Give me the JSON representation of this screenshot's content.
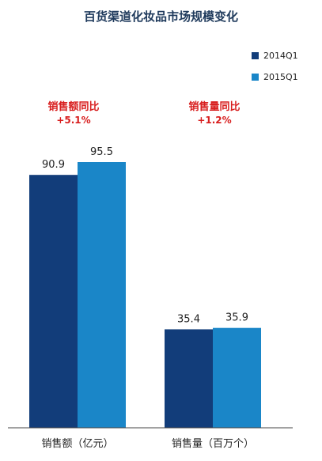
{
  "colors": {
    "series1": "#123d7a",
    "series2": "#1a86c8",
    "axis": "#444444",
    "annotation": "#d81e1e"
  },
  "chart_data": {
    "type": "bar",
    "title": "百货渠道化妆品市场规模变化",
    "categories": [
      "销售额（亿元）",
      "销售量（百万个）"
    ],
    "series": [
      {
        "name": "2014Q1",
        "values": [
          90.9,
          35.4
        ]
      },
      {
        "name": "2015Q1",
        "values": [
          95.5,
          35.9
        ]
      }
    ],
    "data_labels": [
      [
        "90.9",
        "95.5"
      ],
      [
        "35.4",
        "35.9"
      ]
    ],
    "annotations": [
      {
        "label": "销售额同比",
        "value": "+5.1%"
      },
      {
        "label": "销售量同比",
        "value": "+1.2%"
      }
    ],
    "legend_position": "top-right",
    "grid": false
  }
}
